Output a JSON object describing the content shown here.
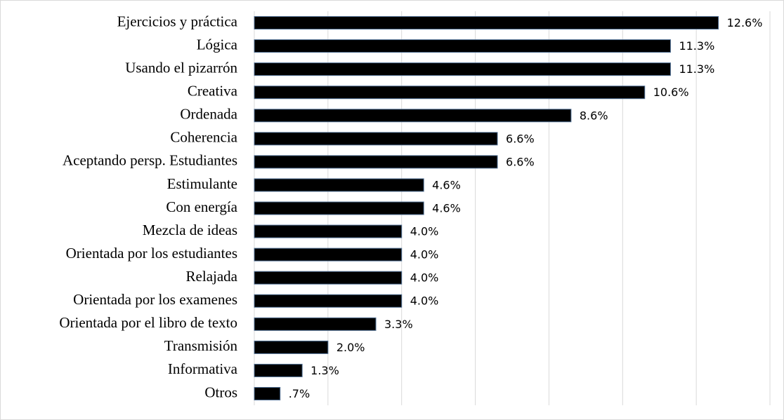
{
  "chart_data": {
    "type": "bar",
    "orientation": "horizontal",
    "categories": [
      "Ejercicios y práctica",
      "Lógica",
      "Usando el pizarrón",
      "Creativa",
      "Ordenada",
      "Coherencia",
      "Aceptando persp. Estudiantes",
      "Estimulante",
      "Con energía",
      "Mezcla de ideas",
      "Orientada por los estudiantes",
      "Relajada",
      "Orientada por los examenes",
      "Orientada por el libro de texto",
      "Transmisión",
      "Informativa",
      "Otros"
    ],
    "values": [
      12.6,
      11.3,
      11.3,
      10.6,
      8.6,
      6.6,
      6.6,
      4.6,
      4.6,
      4.0,
      4.0,
      4.0,
      4.0,
      3.3,
      2.0,
      1.3,
      0.7
    ],
    "value_labels": [
      "12.6%",
      "11.3%",
      "11.3%",
      "10.6%",
      "8.6%",
      "6.6%",
      "6.6%",
      "4.6%",
      "4.6%",
      "4.0%",
      "4.0%",
      "4.0%",
      "4.0%",
      "3.3%",
      "2.0%",
      "1.3%",
      ".7%"
    ],
    "color": "#000000",
    "xlim": [
      0,
      14
    ],
    "xticks": [
      0,
      2,
      4,
      6,
      8,
      10,
      12,
      14
    ],
    "grid": true
  }
}
